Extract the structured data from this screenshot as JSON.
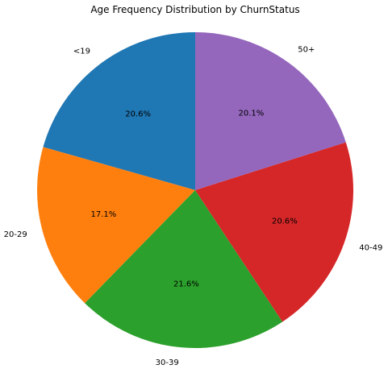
{
  "chart_data": {
    "type": "pie",
    "title": "Age Frequency Distribution by ChurnStatus",
    "start_angle_deg": 90,
    "direction": "counterclockwise",
    "slices": [
      {
        "label": "<19",
        "value": 20.6,
        "pct_label": "20.6%",
        "color": "#1f77b4"
      },
      {
        "label": "20-29",
        "value": 17.1,
        "pct_label": "17.1%",
        "color": "#ff7f0e"
      },
      {
        "label": "30-39",
        "value": 21.6,
        "pct_label": "21.6%",
        "color": "#2ca02c"
      },
      {
        "label": "40-49",
        "value": 20.6,
        "pct_label": "20.6%",
        "color": "#d62728"
      },
      {
        "label": "50+",
        "value": 20.1,
        "pct_label": "20.1%",
        "color": "#9467bd"
      }
    ]
  }
}
